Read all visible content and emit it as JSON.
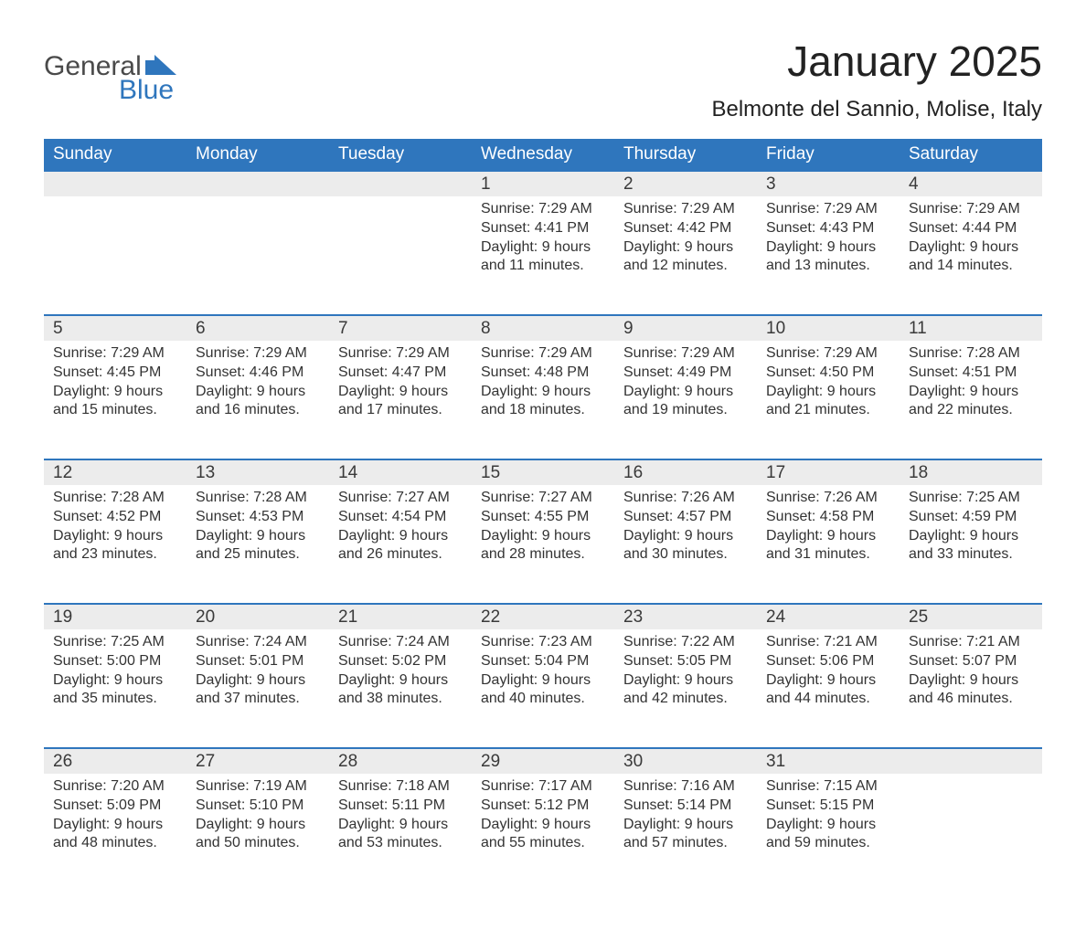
{
  "brand": {
    "top": "General",
    "bottom": "Blue",
    "top_color": "#4a4a4a",
    "bottom_color": "#2f76bd"
  },
  "title": "January 2025",
  "location": "Belmonte del Sannio, Molise, Italy",
  "colors": {
    "header_bg": "#2f76bd",
    "header_text": "#ffffff",
    "row_border": "#2f76bd",
    "daynum_bg": "#ececec",
    "text": "#333333",
    "page_bg": "#ffffff"
  },
  "fonts": {
    "title_pt": 46,
    "location_pt": 24,
    "header_pt": 19,
    "daynum_pt": 19,
    "body_pt": 16
  },
  "day_headers": [
    "Sunday",
    "Monday",
    "Tuesday",
    "Wednesday",
    "Thursday",
    "Friday",
    "Saturday"
  ],
  "weeks": [
    [
      null,
      null,
      null,
      {
        "n": "1",
        "sunrise": "7:29 AM",
        "sunset": "4:41 PM",
        "dl1": "Daylight: 9 hours",
        "dl2": "and 11 minutes."
      },
      {
        "n": "2",
        "sunrise": "7:29 AM",
        "sunset": "4:42 PM",
        "dl1": "Daylight: 9 hours",
        "dl2": "and 12 minutes."
      },
      {
        "n": "3",
        "sunrise": "7:29 AM",
        "sunset": "4:43 PM",
        "dl1": "Daylight: 9 hours",
        "dl2": "and 13 minutes."
      },
      {
        "n": "4",
        "sunrise": "7:29 AM",
        "sunset": "4:44 PM",
        "dl1": "Daylight: 9 hours",
        "dl2": "and 14 minutes."
      }
    ],
    [
      {
        "n": "5",
        "sunrise": "7:29 AM",
        "sunset": "4:45 PM",
        "dl1": "Daylight: 9 hours",
        "dl2": "and 15 minutes."
      },
      {
        "n": "6",
        "sunrise": "7:29 AM",
        "sunset": "4:46 PM",
        "dl1": "Daylight: 9 hours",
        "dl2": "and 16 minutes."
      },
      {
        "n": "7",
        "sunrise": "7:29 AM",
        "sunset": "4:47 PM",
        "dl1": "Daylight: 9 hours",
        "dl2": "and 17 minutes."
      },
      {
        "n": "8",
        "sunrise": "7:29 AM",
        "sunset": "4:48 PM",
        "dl1": "Daylight: 9 hours",
        "dl2": "and 18 minutes."
      },
      {
        "n": "9",
        "sunrise": "7:29 AM",
        "sunset": "4:49 PM",
        "dl1": "Daylight: 9 hours",
        "dl2": "and 19 minutes."
      },
      {
        "n": "10",
        "sunrise": "7:29 AM",
        "sunset": "4:50 PM",
        "dl1": "Daylight: 9 hours",
        "dl2": "and 21 minutes."
      },
      {
        "n": "11",
        "sunrise": "7:28 AM",
        "sunset": "4:51 PM",
        "dl1": "Daylight: 9 hours",
        "dl2": "and 22 minutes."
      }
    ],
    [
      {
        "n": "12",
        "sunrise": "7:28 AM",
        "sunset": "4:52 PM",
        "dl1": "Daylight: 9 hours",
        "dl2": "and 23 minutes."
      },
      {
        "n": "13",
        "sunrise": "7:28 AM",
        "sunset": "4:53 PM",
        "dl1": "Daylight: 9 hours",
        "dl2": "and 25 minutes."
      },
      {
        "n": "14",
        "sunrise": "7:27 AM",
        "sunset": "4:54 PM",
        "dl1": "Daylight: 9 hours",
        "dl2": "and 26 minutes."
      },
      {
        "n": "15",
        "sunrise": "7:27 AM",
        "sunset": "4:55 PM",
        "dl1": "Daylight: 9 hours",
        "dl2": "and 28 minutes."
      },
      {
        "n": "16",
        "sunrise": "7:26 AM",
        "sunset": "4:57 PM",
        "dl1": "Daylight: 9 hours",
        "dl2": "and 30 minutes."
      },
      {
        "n": "17",
        "sunrise": "7:26 AM",
        "sunset": "4:58 PM",
        "dl1": "Daylight: 9 hours",
        "dl2": "and 31 minutes."
      },
      {
        "n": "18",
        "sunrise": "7:25 AM",
        "sunset": "4:59 PM",
        "dl1": "Daylight: 9 hours",
        "dl2": "and 33 minutes."
      }
    ],
    [
      {
        "n": "19",
        "sunrise": "7:25 AM",
        "sunset": "5:00 PM",
        "dl1": "Daylight: 9 hours",
        "dl2": "and 35 minutes."
      },
      {
        "n": "20",
        "sunrise": "7:24 AM",
        "sunset": "5:01 PM",
        "dl1": "Daylight: 9 hours",
        "dl2": "and 37 minutes."
      },
      {
        "n": "21",
        "sunrise": "7:24 AM",
        "sunset": "5:02 PM",
        "dl1": "Daylight: 9 hours",
        "dl2": "and 38 minutes."
      },
      {
        "n": "22",
        "sunrise": "7:23 AM",
        "sunset": "5:04 PM",
        "dl1": "Daylight: 9 hours",
        "dl2": "and 40 minutes."
      },
      {
        "n": "23",
        "sunrise": "7:22 AM",
        "sunset": "5:05 PM",
        "dl1": "Daylight: 9 hours",
        "dl2": "and 42 minutes."
      },
      {
        "n": "24",
        "sunrise": "7:21 AM",
        "sunset": "5:06 PM",
        "dl1": "Daylight: 9 hours",
        "dl2": "and 44 minutes."
      },
      {
        "n": "25",
        "sunrise": "7:21 AM",
        "sunset": "5:07 PM",
        "dl1": "Daylight: 9 hours",
        "dl2": "and 46 minutes."
      }
    ],
    [
      {
        "n": "26",
        "sunrise": "7:20 AM",
        "sunset": "5:09 PM",
        "dl1": "Daylight: 9 hours",
        "dl2": "and 48 minutes."
      },
      {
        "n": "27",
        "sunrise": "7:19 AM",
        "sunset": "5:10 PM",
        "dl1": "Daylight: 9 hours",
        "dl2": "and 50 minutes."
      },
      {
        "n": "28",
        "sunrise": "7:18 AM",
        "sunset": "5:11 PM",
        "dl1": "Daylight: 9 hours",
        "dl2": "and 53 minutes."
      },
      {
        "n": "29",
        "sunrise": "7:17 AM",
        "sunset": "5:12 PM",
        "dl1": "Daylight: 9 hours",
        "dl2": "and 55 minutes."
      },
      {
        "n": "30",
        "sunrise": "7:16 AM",
        "sunset": "5:14 PM",
        "dl1": "Daylight: 9 hours",
        "dl2": "and 57 minutes."
      },
      {
        "n": "31",
        "sunrise": "7:15 AM",
        "sunset": "5:15 PM",
        "dl1": "Daylight: 9 hours",
        "dl2": "and 59 minutes."
      },
      null
    ]
  ],
  "labels": {
    "sunrise": "Sunrise: ",
    "sunset": "Sunset: "
  }
}
